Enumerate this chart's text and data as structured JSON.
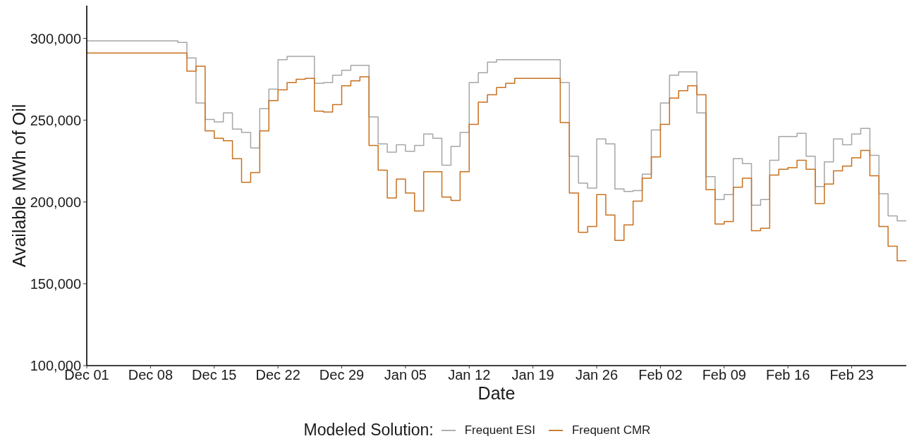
{
  "chart_data": {
    "type": "step",
    "xlabel": "Date",
    "ylabel": "Available MWh of Oil",
    "legend_title": "Modeled Solution:",
    "legend": "bottom",
    "categories": [
      "Dec 01",
      null,
      null,
      null,
      null,
      null,
      null,
      "Dec 08",
      null,
      null,
      null,
      null,
      null,
      null,
      "Dec 15",
      null,
      null,
      null,
      null,
      null,
      null,
      "Dec 22",
      null,
      null,
      null,
      null,
      null,
      null,
      "Dec 29",
      null,
      null,
      null,
      null,
      null,
      null,
      "Jan 05",
      null,
      null,
      null,
      null,
      null,
      null,
      "Jan 12",
      null,
      null,
      null,
      null,
      null,
      null,
      "Jan 19",
      null,
      null,
      null,
      null,
      null,
      null,
      "Jan 26",
      null,
      null,
      null,
      null,
      null,
      null,
      "Feb 02",
      null,
      null,
      null,
      null,
      null,
      null,
      "Feb 09",
      null,
      null,
      null,
      null,
      null,
      null,
      "Feb 16",
      null,
      null,
      null,
      null,
      null,
      null,
      "Feb 23",
      null,
      null,
      null,
      null,
      null,
      null
    ],
    "series": [
      {
        "name": "Frequent ESI",
        "color": "#a6a6a6",
        "values": [
          298500,
          298500,
          298500,
          298500,
          298500,
          298500,
          298500,
          298500,
          298500,
          298500,
          297500,
          288000,
          260500,
          250500,
          249000,
          254500,
          244500,
          242500,
          233000,
          257000,
          269000,
          287000,
          289000,
          289000,
          289000,
          272500,
          273000,
          277500,
          280500,
          283500,
          283500,
          252000,
          235500,
          230500,
          235000,
          231000,
          234500,
          241500,
          239000,
          222500,
          234000,
          242500,
          273000,
          279000,
          285500,
          287000,
          287000,
          287000,
          287000,
          287000,
          287000,
          287000,
          273000,
          228000,
          211500,
          208500,
          238500,
          235500,
          208000,
          206500,
          207000,
          217000,
          244000,
          260500,
          277500,
          279500,
          279500,
          254500,
          215500,
          201500,
          204500,
          226500,
          223500,
          198000,
          201500,
          225500,
          240000,
          240000,
          242000,
          228000,
          209500,
          224500,
          238500,
          235000,
          241500,
          245000,
          228500,
          205000,
          191500,
          188500,
          188500
        ]
      },
      {
        "name": "Frequent CMR",
        "color": "#c8701e",
        "values": [
          291000,
          291000,
          291000,
          291000,
          291000,
          291000,
          291000,
          291000,
          291000,
          291000,
          291000,
          280000,
          283000,
          243500,
          239000,
          237500,
          226500,
          212000,
          218000,
          243500,
          262000,
          268500,
          273000,
          275000,
          275500,
          255500,
          255000,
          259500,
          271000,
          274000,
          276500,
          234500,
          219500,
          202500,
          214000,
          205500,
          194500,
          218500,
          218500,
          203000,
          201000,
          218500,
          247500,
          261000,
          265500,
          270000,
          272500,
          275500,
          275500,
          275500,
          275500,
          275500,
          248500,
          205500,
          181500,
          185000,
          204500,
          192000,
          176500,
          186000,
          200500,
          214500,
          227500,
          247500,
          263500,
          268000,
          271000,
          265500,
          207500,
          186500,
          188000,
          209000,
          214500,
          182500,
          184000,
          216500,
          220000,
          221000,
          225500,
          220000,
          199000,
          211000,
          219000,
          222000,
          227000,
          231500,
          216000,
          185000,
          173000,
          164000,
          164000
        ]
      }
    ],
    "ylim": [
      100000,
      320000
    ],
    "yticks": [
      {
        "value": 100000,
        "label": "100,000"
      },
      {
        "value": 150000,
        "label": "150,000"
      },
      {
        "value": 200000,
        "label": "200,000"
      },
      {
        "value": 250000,
        "label": "250,000"
      },
      {
        "value": 300000,
        "label": "300,000"
      }
    ]
  }
}
